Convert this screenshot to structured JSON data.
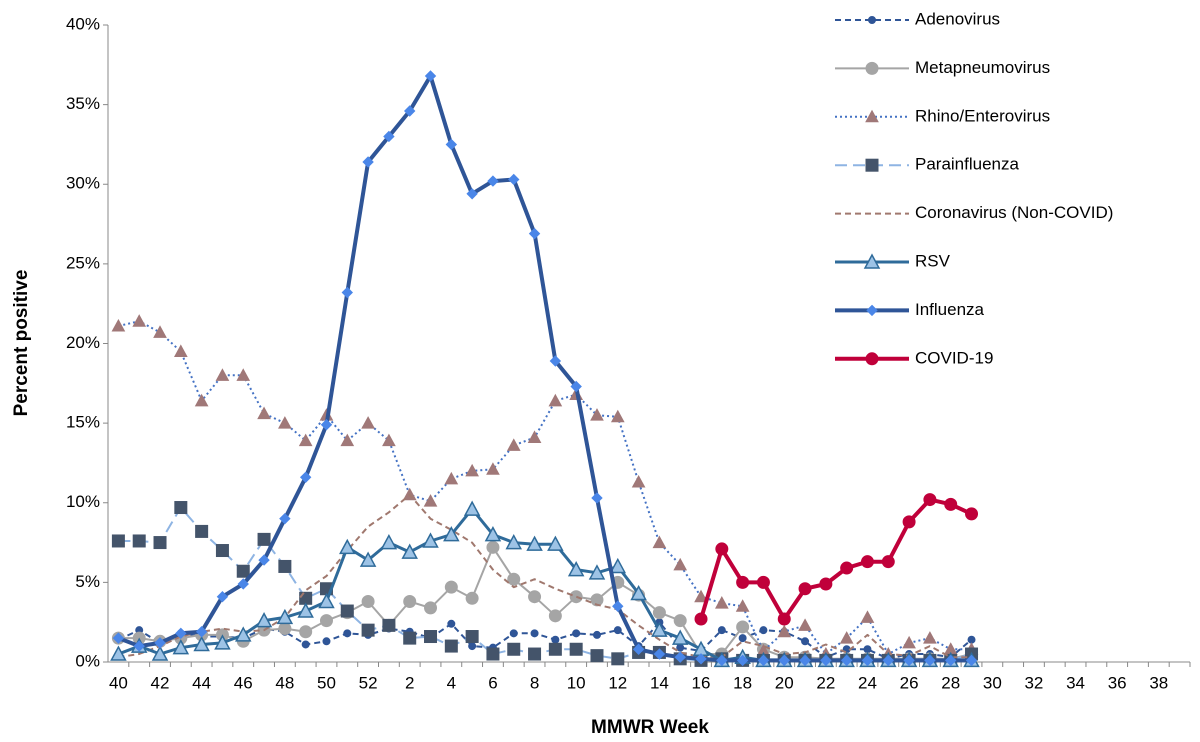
{
  "chart_data": {
    "type": "line",
    "x_label": "MMWR Week",
    "y_label": "Percent positive",
    "categories": [
      "40",
      null,
      "42",
      null,
      "44",
      null,
      "46",
      null,
      "48",
      null,
      "50",
      null,
      "52",
      null,
      "2",
      null,
      "4",
      null,
      "6",
      null,
      "8",
      null,
      "10",
      null,
      "12",
      null,
      "14",
      null,
      "16",
      null,
      "18",
      null,
      "20",
      null,
      "22",
      null,
      "24",
      null,
      "26",
      null,
      "28",
      null,
      "30",
      null,
      "32",
      null,
      "34",
      null,
      "36",
      null,
      "38",
      null
    ],
    "ylim": [
      0,
      40
    ],
    "yticks": [
      {
        "value": 0,
        "label": "0%"
      },
      {
        "value": 5,
        "label": "5%"
      },
      {
        "value": 10,
        "label": "10%"
      },
      {
        "value": 15,
        "label": "15%"
      },
      {
        "value": 20,
        "label": "20%"
      },
      {
        "value": 25,
        "label": "25%"
      },
      {
        "value": 30,
        "label": "30%"
      },
      {
        "value": 35,
        "label": "35%"
      },
      {
        "value": 40,
        "label": "40%"
      }
    ],
    "grid": false,
    "legend": "right",
    "series": [
      {
        "name": "Adenovirus",
        "color": "#2f5597",
        "marker_color": "#2f5597",
        "dash": "dashed",
        "marker": "circle",
        "width": 2,
        "values": [
          1.4,
          2.0,
          1.2,
          1.8,
          1.6,
          1.6,
          1.5,
          2.1,
          1.9,
          1.1,
          1.3,
          1.8,
          1.7,
          2.1,
          1.9,
          1.5,
          2.4,
          1.0,
          0.9,
          1.8,
          1.8,
          1.4,
          1.8,
          1.7,
          2.0,
          1.0,
          2.5,
          0.9,
          0.7,
          2.0,
          1.5,
          2.0,
          1.9,
          1.3,
          0.3,
          0.8,
          0.8,
          0.2,
          0.5,
          0.5,
          0.3,
          1.4,
          null,
          null,
          null,
          null,
          null,
          null,
          null,
          null,
          null,
          null
        ]
      },
      {
        "name": "Metapneumovirus",
        "color": "#a5a5a5",
        "marker_color": "#a5a5a5",
        "dash": "solid",
        "marker": "big-circle",
        "width": 2,
        "values": [
          1.5,
          1.5,
          1.3,
          1.5,
          1.7,
          1.7,
          1.3,
          2.0,
          2.1,
          1.9,
          2.6,
          3.1,
          3.8,
          2.3,
          3.8,
          3.4,
          4.7,
          4.0,
          7.2,
          5.2,
          4.1,
          2.9,
          4.1,
          3.9,
          5.0,
          4.2,
          3.1,
          2.6,
          0.5,
          0.5,
          2.2,
          0.8,
          0.3,
          0.3,
          0.2,
          0.2,
          0.2,
          0.2,
          0.2,
          0.2,
          0.2,
          0.5,
          null,
          null,
          null,
          null,
          null,
          null,
          null,
          null,
          null,
          null
        ]
      },
      {
        "name": "Rhino/Enterovirus",
        "color": "#4472c4",
        "marker_color": "#a07878",
        "dash": "dotted",
        "marker": "triangle",
        "width": 2,
        "values": [
          21.1,
          21.4,
          20.7,
          19.5,
          16.4,
          18.0,
          18.0,
          15.6,
          15.0,
          13.9,
          15.5,
          13.9,
          15.0,
          13.9,
          10.5,
          10.1,
          11.5,
          12.0,
          12.1,
          13.6,
          14.1,
          16.4,
          16.8,
          15.5,
          15.4,
          11.3,
          7.5,
          6.1,
          4.1,
          3.7,
          3.5,
          0.7,
          1.9,
          2.3,
          0.5,
          1.5,
          2.8,
          0.5,
          1.2,
          1.5,
          0.8,
          0.8,
          null,
          null,
          null,
          null,
          null,
          null,
          null,
          null,
          null,
          null
        ]
      },
      {
        "name": "Parainfluenza",
        "color": "#8eb4e3",
        "marker_color": "#44546a",
        "dash": "longdash",
        "marker": "square",
        "width": 2,
        "values": [
          7.6,
          7.6,
          7.5,
          9.7,
          8.2,
          7.0,
          5.7,
          7.7,
          6.0,
          4.0,
          4.6,
          3.2,
          2.0,
          2.3,
          1.5,
          1.6,
          1.0,
          1.6,
          0.5,
          0.8,
          0.5,
          0.8,
          0.8,
          0.4,
          0.2,
          0.6,
          0.6,
          0.2,
          0.1,
          0.2,
          0.1,
          0.1,
          0.1,
          0.1,
          0.1,
          0.1,
          0.1,
          0.1,
          0.1,
          0.1,
          0.1,
          0.5,
          null,
          null,
          null,
          null,
          null,
          null,
          null,
          null,
          null,
          null
        ]
      },
      {
        "name": "Coronavirus (Non-COVID)",
        "color": "#a0786e",
        "marker_color": "#a0786e",
        "dash": "dashed",
        "marker": "none",
        "width": 2,
        "values": [
          0.3,
          0.5,
          1.0,
          1.6,
          1.9,
          2.1,
          1.9,
          2.0,
          2.8,
          4.5,
          5.4,
          7.0,
          8.5,
          9.4,
          10.5,
          9.0,
          8.3,
          7.5,
          5.8,
          4.7,
          5.2,
          4.6,
          4.1,
          3.6,
          3.3,
          2.3,
          1.4,
          0.6,
          0.3,
          0.3,
          1.3,
          1.0,
          0.5,
          0.6,
          1.1,
          0.6,
          1.7,
          0.5,
          0.4,
          1.0,
          0.3,
          0.3,
          null,
          null,
          null,
          null,
          null,
          null,
          null,
          null,
          null,
          null
        ]
      },
      {
        "name": "RSV",
        "color": "#2f6b9a",
        "marker_color": "#9dc3e6",
        "dash": "solid",
        "marker": "big-triangle",
        "width": 3,
        "values": [
          0.5,
          1.0,
          0.5,
          0.9,
          1.1,
          1.2,
          1.7,
          2.6,
          2.8,
          3.2,
          3.8,
          7.2,
          6.4,
          7.5,
          6.9,
          7.6,
          8.0,
          9.6,
          8.0,
          7.5,
          7.4,
          7.4,
          5.8,
          5.6,
          6.0,
          4.3,
          2.0,
          1.5,
          0.8,
          0.1,
          0.3,
          0.1,
          0.1,
          0.1,
          0.1,
          0.1,
          0.1,
          0.1,
          0.1,
          0.1,
          0.1,
          0.1,
          null,
          null,
          null,
          null,
          null,
          null,
          null,
          null,
          null,
          null
        ]
      },
      {
        "name": "Influenza",
        "color": "#2f5597",
        "marker_color": "#4a86e8",
        "dash": "solid",
        "marker": "diamond",
        "width": 4,
        "values": [
          1.5,
          1.0,
          1.2,
          1.8,
          1.9,
          4.1,
          4.9,
          6.4,
          9.0,
          11.6,
          14.9,
          23.2,
          31.4,
          33.0,
          34.6,
          36.8,
          32.5,
          29.4,
          30.2,
          30.3,
          26.9,
          18.9,
          17.3,
          10.3,
          3.5,
          0.8,
          0.5,
          0.3,
          0.2,
          0.1,
          0.1,
          0.1,
          0.1,
          0.1,
          0.1,
          0.1,
          0.1,
          0.1,
          0.1,
          0.1,
          0.1,
          0.1,
          null,
          null,
          null,
          null,
          null,
          null,
          null,
          null,
          null,
          null
        ]
      },
      {
        "name": "COVID-19",
        "color": "#c0003a",
        "marker_color": "#c0003a",
        "dash": "solid",
        "marker": "big-circle",
        "width": 4,
        "values": [
          null,
          null,
          null,
          null,
          null,
          null,
          null,
          null,
          null,
          null,
          null,
          null,
          null,
          null,
          null,
          null,
          null,
          null,
          null,
          null,
          null,
          null,
          null,
          null,
          null,
          null,
          null,
          null,
          2.7,
          7.1,
          5.0,
          5.0,
          2.7,
          4.6,
          4.9,
          5.9,
          6.3,
          6.3,
          8.8,
          10.2,
          9.9,
          9.3,
          null,
          null,
          null,
          null,
          null,
          null,
          null,
          null,
          null,
          null
        ]
      }
    ]
  }
}
